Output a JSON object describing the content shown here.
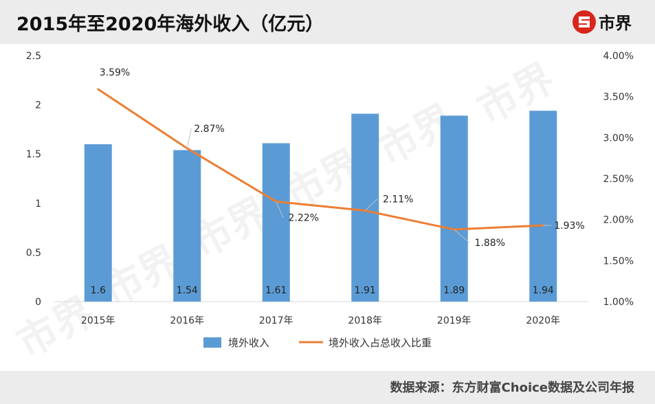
{
  "header": {
    "title": "2015年至2020年海外收入（亿元）",
    "logo_text": "市界",
    "logo_icon": "s-circle-logo-icon"
  },
  "footer": {
    "source": "数据来源：东方财富Choice数据及公司年报"
  },
  "watermark_text": "市界",
  "colors": {
    "bar": "#5b9bd5",
    "line": "#ed7d31",
    "logo": "#d9261c"
  },
  "chart_data": {
    "type": "bar+line",
    "categories": [
      "2015年",
      "2016年",
      "2017年",
      "2018年",
      "2019年",
      "2020年"
    ],
    "series": [
      {
        "name": "境外收入",
        "type": "bar",
        "axis": "left",
        "values": [
          1.6,
          1.54,
          1.61,
          1.91,
          1.89,
          1.94
        ],
        "labels": [
          "1.6",
          "1.54",
          "1.61",
          "1.91",
          "1.89",
          "1.94"
        ]
      },
      {
        "name": "境外收入占总收入比重",
        "type": "line",
        "axis": "right",
        "values": [
          3.59,
          2.87,
          2.22,
          2.11,
          1.88,
          1.93
        ],
        "labels": [
          "3.59%",
          "2.87%",
          "2.22%",
          "2.11%",
          "1.88%",
          "1.93%"
        ]
      }
    ],
    "y_left": {
      "range": [
        0,
        2.5
      ],
      "ticks": [
        "0",
        "0.5",
        "1",
        "1.5",
        "2",
        "2.5"
      ],
      "tick_values": [
        0,
        0.5,
        1,
        1.5,
        2,
        2.5
      ]
    },
    "y_right": {
      "range": [
        1.0,
        4.0
      ],
      "ticks": [
        "1.00%",
        "1.50%",
        "2.00%",
        "2.50%",
        "3.00%",
        "3.50%",
        "4.00%"
      ],
      "tick_values": [
        1.0,
        1.5,
        2.0,
        2.5,
        3.0,
        3.5,
        4.0
      ]
    },
    "grid": false,
    "legend_position": "bottom"
  }
}
